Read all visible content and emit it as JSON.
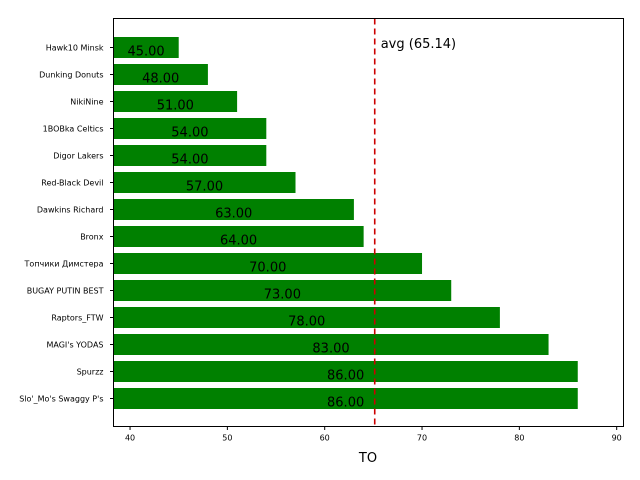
{
  "chart_data": {
    "type": "bar",
    "orientation": "horizontal",
    "categories": [
      "Hawk10 Minsk",
      "Dunking Donuts",
      "NikiNine",
      "1BOBka Celtics",
      "Digor Lakers",
      "Red-Black Devil",
      "Dawkins Richard",
      "Bronx",
      "Топчики Димстера",
      "BUGAY PUTIN BEST",
      "Raptors_FTW",
      "MAGI's YODAS",
      "Spurzz",
      "Slo'_Mo's Swaggy P's"
    ],
    "values": [
      45,
      48,
      51,
      54,
      54,
      57,
      63,
      64,
      70,
      73,
      78,
      83,
      86,
      86
    ],
    "value_labels": [
      "45.00",
      "48.00",
      "51.00",
      "54.00",
      "54.00",
      "57.00",
      "63.00",
      "64.00",
      "70.00",
      "73.00",
      "78.00",
      "83.00",
      "86.00",
      "86.00"
    ],
    "xlabel": "TO",
    "ylabel": "",
    "title": "",
    "xlim": [
      38.3,
      90.7
    ],
    "xticks": [
      40,
      50,
      60,
      70,
      80,
      90
    ],
    "grid": false,
    "bar_color": "#008000",
    "average": {
      "value": 65.14,
      "label": "avg (65.14)",
      "color": "#cc0000"
    }
  }
}
